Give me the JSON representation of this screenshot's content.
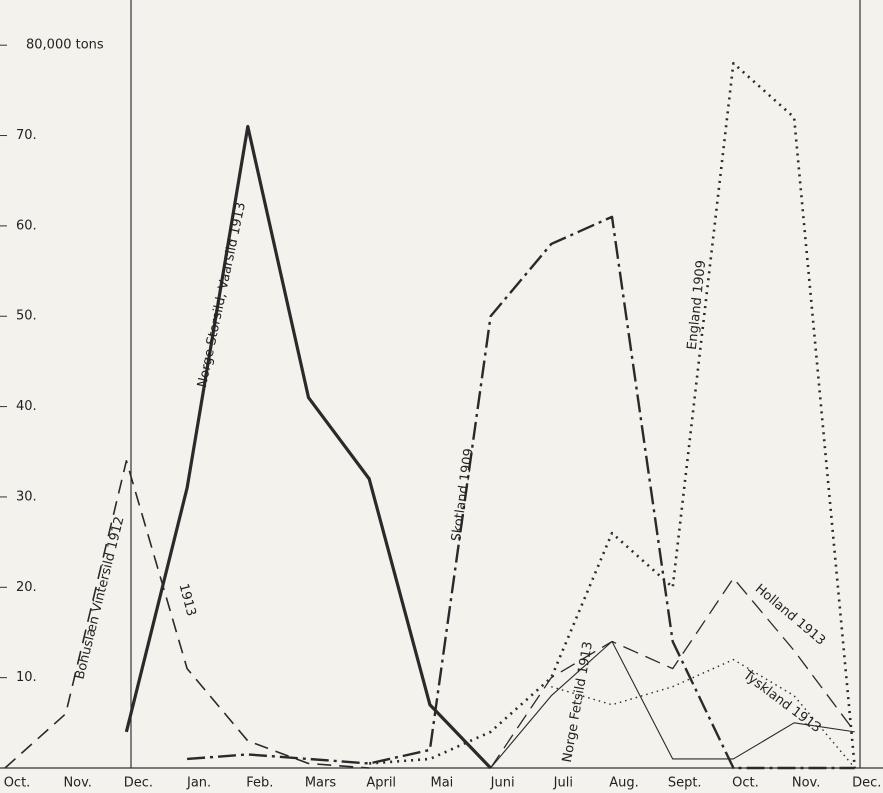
{
  "chart_data": {
    "type": "line",
    "categories": [
      "Oct.",
      "Nov.",
      "Dec.",
      "Jan.",
      "Feb.",
      "Mars",
      "April",
      "Mai",
      "Juni",
      "Juli",
      "Aug.",
      "Sept.",
      "Oct.",
      "Nov.",
      "Dec."
    ],
    "ylim": [
      0,
      85
    ],
    "yticks": [
      {
        "value": 10,
        "label": "10."
      },
      {
        "value": 20,
        "label": "20."
      },
      {
        "value": 30,
        "label": "30."
      },
      {
        "value": 40,
        "label": "40."
      },
      {
        "value": 50,
        "label": "50."
      },
      {
        "value": 60,
        "label": "60."
      },
      {
        "value": 70,
        "label": "70."
      },
      {
        "value": 80,
        "label": "80,000 tons"
      }
    ],
    "annotations": [
      "1913"
    ],
    "series": [
      {
        "name": "Bohuslæn Vintersild 1912",
        "color": "#2a2a2a",
        "dash": "14 8",
        "width": 1.6,
        "values": [
          0,
          6,
          34,
          11,
          3,
          0.5,
          0,
          null,
          null,
          null,
          null,
          null,
          null,
          null,
          null
        ]
      },
      {
        "name": "Norge Storsild, Vaarsild 1913",
        "color": "#2a2a2a",
        "dash": "none",
        "width": 3.2,
        "values": [
          null,
          null,
          4,
          31,
          71,
          41,
          32,
          7,
          0,
          null,
          null,
          null,
          null,
          null,
          null
        ]
      },
      {
        "name": "Skotland 1909",
        "color": "#2a2a2a",
        "dash": "18 5 3 5",
        "width": 2.4,
        "values": [
          null,
          null,
          null,
          1,
          1.5,
          1,
          0.5,
          2,
          50,
          58,
          61,
          14,
          0,
          0,
          0
        ]
      },
      {
        "name": "England 1909",
        "color": "#2a2a2a",
        "dash": "2 5",
        "width": 2.6,
        "values": [
          null,
          null,
          null,
          null,
          null,
          null,
          0.5,
          1,
          4,
          10,
          26,
          20,
          78,
          72,
          0
        ]
      },
      {
        "name": "Holland 1913",
        "color": "#2a2a2a",
        "dash": "16 8",
        "width": 1.3,
        "values": [
          null,
          null,
          null,
          null,
          null,
          null,
          null,
          null,
          0,
          10,
          14,
          11,
          21,
          13,
          4
        ]
      },
      {
        "name": "Tyskland 1913",
        "color": "#2a2a2a",
        "dash": "1.5 4",
        "width": 1.4,
        "values": [
          null,
          null,
          null,
          null,
          null,
          null,
          null,
          null,
          null,
          9,
          7,
          9,
          12,
          8,
          0
        ]
      },
      {
        "name": "Norge Fetsild 1913",
        "color": "#2a2a2a",
        "dash": "none",
        "width": 1.1,
        "values": [
          null,
          null,
          null,
          null,
          null,
          null,
          null,
          null,
          0,
          8,
          14,
          1,
          1,
          5,
          4
        ]
      }
    ]
  }
}
